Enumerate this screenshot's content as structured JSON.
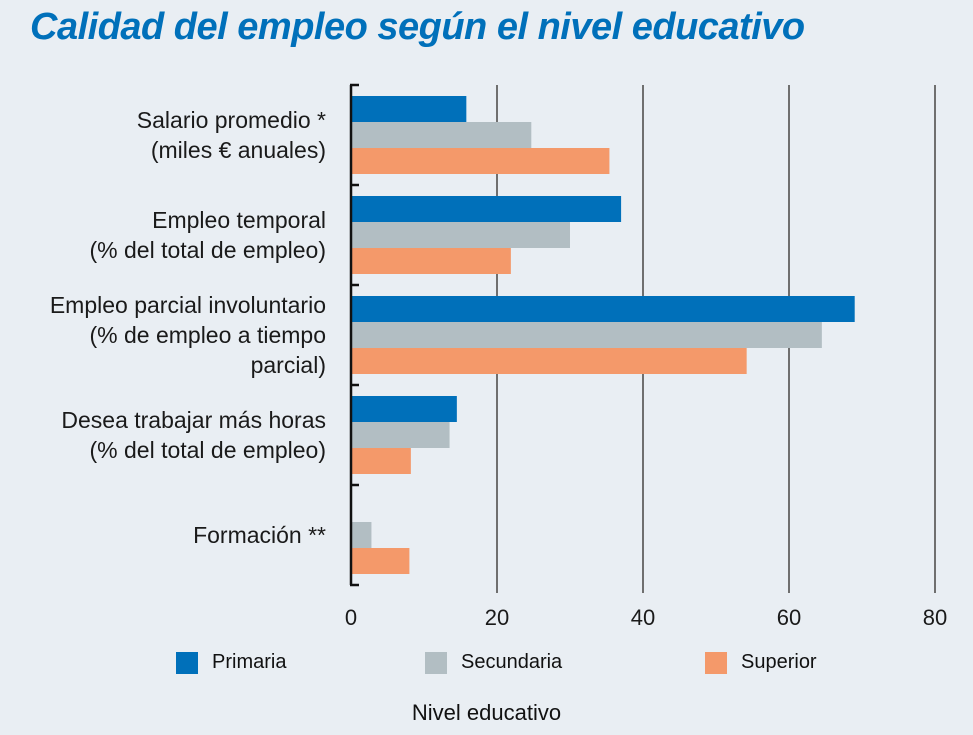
{
  "chart_data": {
    "type": "bar",
    "orientation": "horizontal",
    "title": "Calidad del empleo según el nivel educativo",
    "xlabel": "Nivel educativo",
    "ylabel": "",
    "xlim": [
      0,
      80
    ],
    "xticks": [
      0,
      20,
      40,
      60,
      80
    ],
    "grid": true,
    "legend_position": "bottom",
    "categories": [
      [
        "Salario promedio *",
        "(miles € anuales)"
      ],
      [
        "Empleo temporal",
        "(% del total de empleo)"
      ],
      [
        "Empleo parcial involuntario",
        "(% de empleo a tiempo",
        "parcial)"
      ],
      [
        "Desea trabajar más horas",
        "(% del total de empleo)"
      ],
      [
        "Formación **"
      ]
    ],
    "series": [
      {
        "name": "Primaria",
        "color": "#0070ba",
        "values": [
          15.8,
          37.0,
          69.0,
          14.5,
          null
        ]
      },
      {
        "name": "Secundaria",
        "color": "#b2bec3",
        "values": [
          24.7,
          30.0,
          64.5,
          13.5,
          2.8
        ]
      },
      {
        "name": "Superior",
        "color": "#f4996a",
        "values": [
          35.4,
          21.9,
          54.2,
          8.2,
          8.0
        ]
      }
    ]
  }
}
